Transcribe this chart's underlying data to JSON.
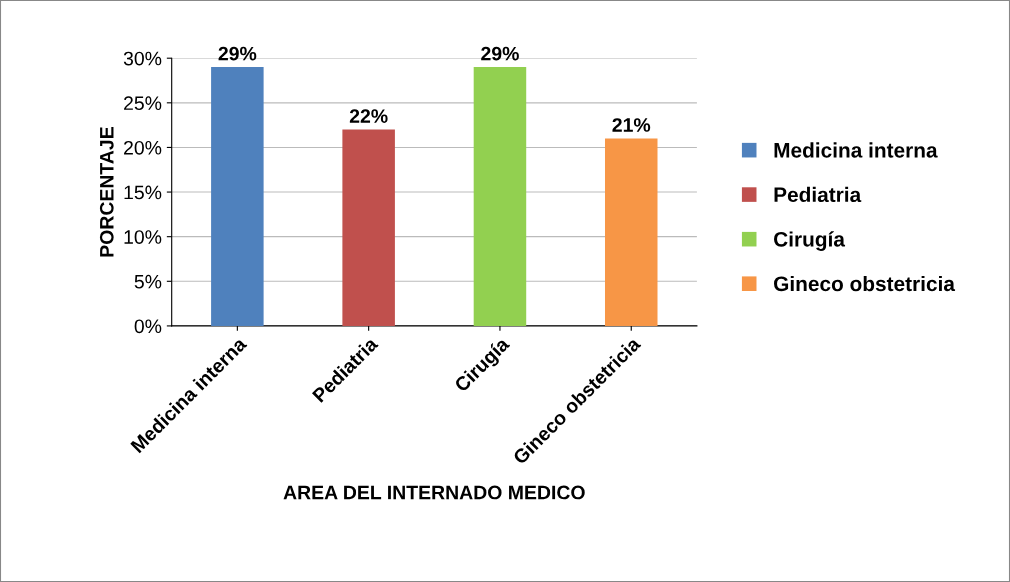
{
  "chart_data": {
    "type": "bar",
    "xlabel": "AREA DEL INTERNADO MEDICO",
    "ylabel": "PORCENTAJE",
    "categories": [
      "Medicina interna",
      "Pediatria",
      "Cirugía",
      "Gineco obstetricia"
    ],
    "series": [
      {
        "name": "Medicina interna",
        "color": "#4f81bd",
        "values": [
          29,
          null,
          null,
          null
        ],
        "value_labels": [
          "29%",
          null,
          null,
          null
        ]
      },
      {
        "name": "Pediatria",
        "color": "#c0504d",
        "values": [
          null,
          22,
          null,
          null
        ],
        "value_labels": [
          null,
          "22%",
          null,
          null
        ]
      },
      {
        "name": "Cirugía",
        "color": "#92d050",
        "values": [
          null,
          null,
          29,
          null
        ],
        "value_labels": [
          null,
          null,
          "29%",
          null
        ]
      },
      {
        "name": "Gineco obstetricia",
        "color": "#f79646",
        "values": [
          null,
          null,
          null,
          21
        ],
        "value_labels": [
          null,
          null,
          null,
          "21%"
        ]
      }
    ],
    "ylim": [
      0,
      30
    ],
    "yticks": [
      {
        "value": 0,
        "label": "0%"
      },
      {
        "value": 5,
        "label": "5%"
      },
      {
        "value": 10,
        "label": "10%"
      },
      {
        "value": 15,
        "label": "15%"
      },
      {
        "value": 20,
        "label": "20%"
      },
      {
        "value": 25,
        "label": "25%"
      },
      {
        "value": 30,
        "label": "30%"
      }
    ],
    "grid": "y",
    "legend": "right"
  }
}
